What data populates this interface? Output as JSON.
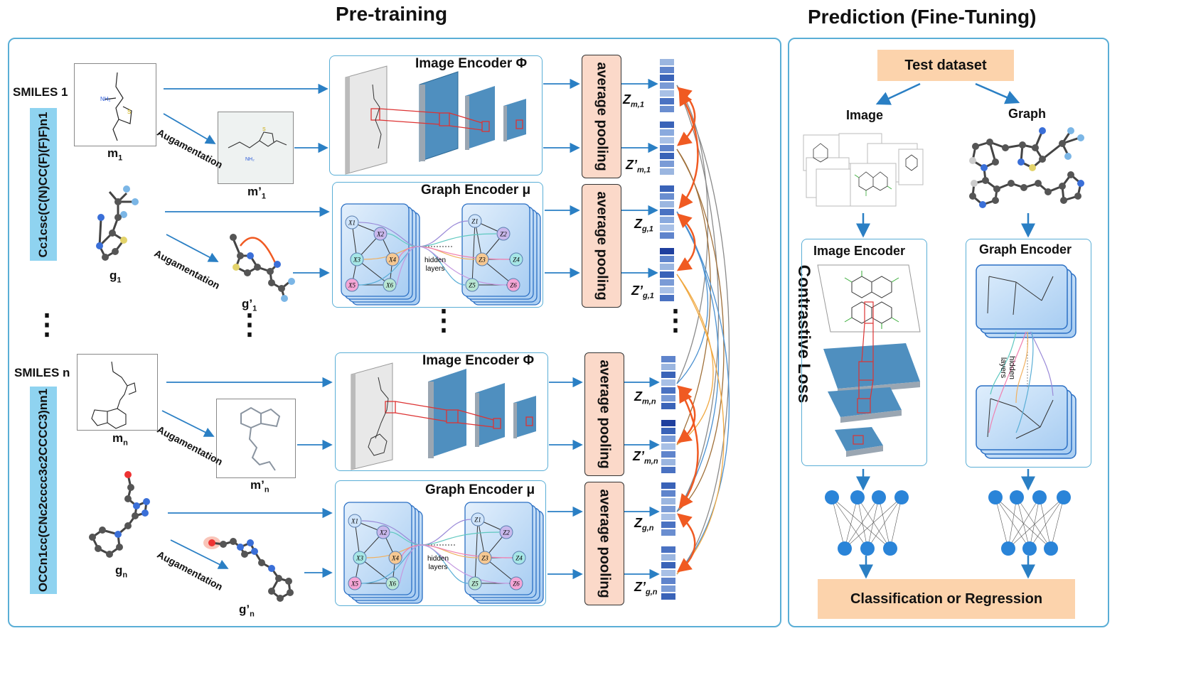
{
  "pretraining": {
    "title": "Pre-training",
    "smiles1_label": "SMILES 1",
    "smiles1": "Cc1csc(C(N)CC(F)(F)F)n1",
    "smilesn_label": "SMILES n",
    "smilesn": "OCCn1cc(CNc2cccc3c2CCCC3)nn1",
    "augmentation": "Augamentation",
    "image_encoder": "Image Encoder Φ",
    "graph_encoder": "Graph Encoder μ",
    "average_pooling": "average pooling",
    "hidden_layers_1": "hidden",
    "hidden_layers_2": "layers",
    "contrastive_loss": "Contrastive Loss",
    "dots": "⋮",
    "mol_labels": {
      "m1": "m",
      "m1_sub": "1",
      "m1p": "m’",
      "m1p_sub": "1",
      "g1": "g",
      "g1_sub": "1",
      "g1p": "g’",
      "g1p_sub": "1",
      "mn": "m",
      "mn_sub": "n",
      "mnp": "m’",
      "mnp_sub": "n",
      "gn": "g",
      "gn_sub": "n",
      "gnp": "g’",
      "gnp_sub": "n"
    },
    "z_labels": {
      "zm1": "Z",
      "zm1_sub": "m,1",
      "zm1p": "Z’",
      "zm1p_sub": "m,1",
      "zg1": "Z",
      "zg1_sub": "g,1",
      "zg1p": "Z’",
      "zg1p_sub": "g,1",
      "zmn": "Z",
      "zmn_sub": "m,n",
      "zmnp": "Z’",
      "zmnp_sub": "m,n",
      "zgn": "Z",
      "zgn_sub": "g,n",
      "zgnp": "Z’",
      "zgnp_sub": "g,n"
    },
    "node_labels": {
      "x1": "X1",
      "x2": "X2",
      "x3": "X3",
      "x4": "X4",
      "x5": "X5",
      "x6": "X6",
      "z1": "Z1",
      "z2": "Z2",
      "z3": "Z3",
      "z4": "Z4",
      "z5": "Z5",
      "z6": "Z6"
    }
  },
  "prediction": {
    "title": "Prediction (Fine-Tuning)",
    "test_dataset": "Test dataset",
    "image": "Image",
    "graph": "Graph",
    "image_encoder": "Image Encoder",
    "graph_encoder": "Graph Encoder",
    "output": "Classification or Regression"
  },
  "colors": {
    "panel_border": "#5aaed6",
    "arrow_blue": "#2a7fc4",
    "arrow_orange": "#f05a22",
    "pool_fill": "#fbd9c9",
    "smiles_fill": "#8fd3f0",
    "node_blue": "#3a8fd8"
  }
}
